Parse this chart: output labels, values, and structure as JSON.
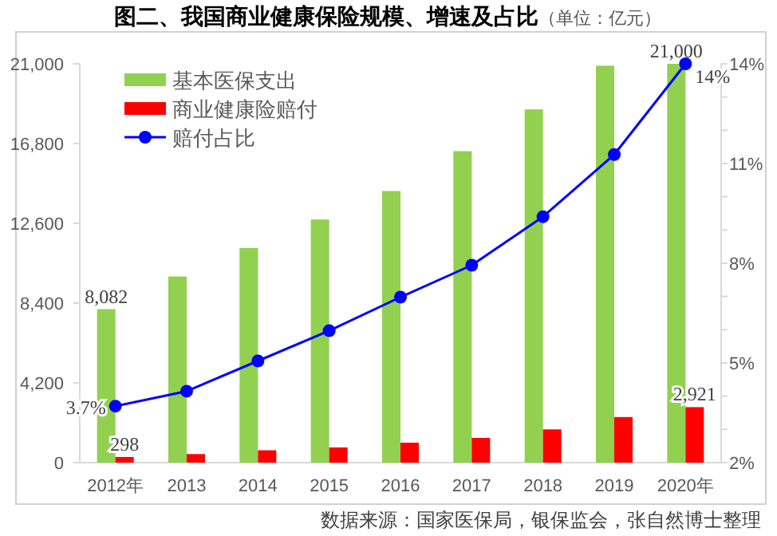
{
  "chart_data": {
    "type": "bar",
    "title": "图二、我国商业健康保险规模、增速及占比",
    "subtitle": "（单位：亿元）",
    "categories": [
      "2012年",
      "2013",
      "2014",
      "2015",
      "2016",
      "2017",
      "2018",
      "2019",
      "2020年"
    ],
    "series": [
      {
        "name": "基本医保支出",
        "color": "#92d050",
        "values": [
          8082,
          9800,
          11300,
          12800,
          14300,
          16400,
          18600,
          20900,
          21000
        ],
        "value_labels": [
          "8,082",
          null,
          null,
          null,
          null,
          null,
          null,
          null,
          "21,000"
        ]
      },
      {
        "name": "商业健康险赔付",
        "color": "#ff0000",
        "values": [
          298,
          450,
          650,
          800,
          1050,
          1300,
          1750,
          2400,
          2921
        ],
        "value_labels": [
          "298",
          null,
          null,
          null,
          null,
          null,
          null,
          null,
          "2,921"
        ]
      },
      {
        "name": "赔付占比",
        "type": "line",
        "axis": "y2",
        "color": "#0000ff",
        "marker": "circle",
        "line_style": "solid",
        "values": [
          3.7,
          4.15,
          5.06,
          5.97,
          6.98,
          7.94,
          9.4,
          11.27,
          14
        ],
        "value_labels": [
          "3.7%",
          null,
          null,
          null,
          null,
          null,
          null,
          null,
          "14%"
        ]
      }
    ],
    "ylim": [
      0,
      21000
    ],
    "yticks": [
      {
        "value": 0,
        "label": "0"
      },
      {
        "value": 4200,
        "label": "4,200"
      },
      {
        "value": 8400,
        "label": "8,400"
      },
      {
        "value": 12600,
        "label": "12,600"
      },
      {
        "value": 16800,
        "label": "16,800"
      },
      {
        "value": 21000,
        "label": "21,000"
      }
    ],
    "y2lim": [
      2,
      14
    ],
    "y2ticks": [
      {
        "value": 2,
        "label": "2%"
      },
      {
        "value": 3,
        "label": null
      },
      {
        "value": 4,
        "label": null
      },
      {
        "value": 5,
        "label": "5%"
      },
      {
        "value": 6,
        "label": null
      },
      {
        "value": 7,
        "label": null
      },
      {
        "value": 8,
        "label": "8%"
      },
      {
        "value": 9,
        "label": null
      },
      {
        "value": 10,
        "label": null
      },
      {
        "value": 11,
        "label": "11%"
      },
      {
        "value": 12,
        "label": null
      },
      {
        "value": 13,
        "label": null
      },
      {
        "value": 14,
        "label": "14%"
      }
    ],
    "legend": "top left",
    "grid": false,
    "annotations": [
      "数据来源：国家医保局，银保监会，张自然博士整理"
    ]
  }
}
